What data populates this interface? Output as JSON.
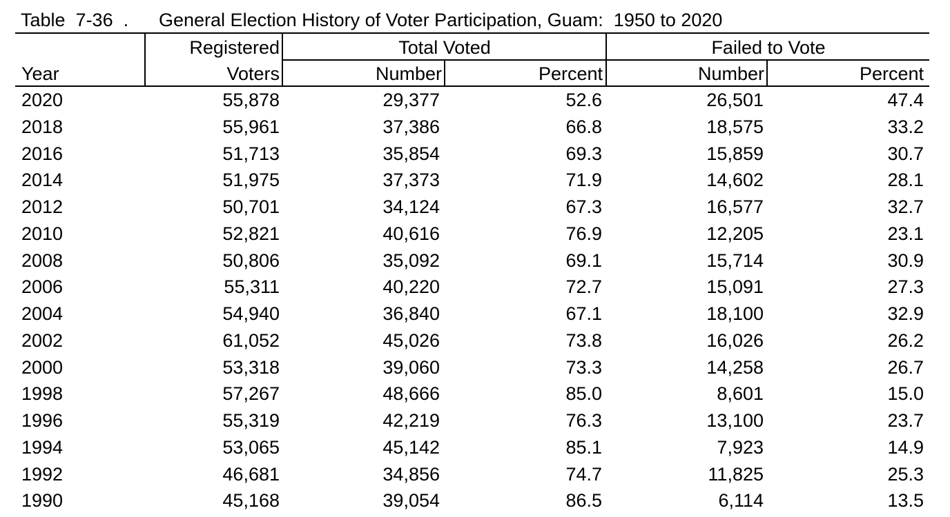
{
  "title": {
    "label": "Table  7-36  .",
    "text": "General Election History of Voter Participation, Guam:  1950 to 2020"
  },
  "headers": {
    "year": "Year",
    "registered_line1": "Registered",
    "registered_line2": "Voters",
    "total_voted": "Total Voted",
    "failed_to_vote": "Failed to Vote",
    "number": "Number",
    "percent": "Percent"
  },
  "rows": [
    {
      "year": "2020",
      "registered": "55,878",
      "voted_number": "29,377",
      "voted_percent": "52.6",
      "failed_number": "26,501",
      "failed_percent": "47.4"
    },
    {
      "year": "2018",
      "registered": "55,961",
      "voted_number": "37,386",
      "voted_percent": "66.8",
      "failed_number": "18,575",
      "failed_percent": "33.2"
    },
    {
      "year": "2016",
      "registered": "51,713",
      "voted_number": "35,854",
      "voted_percent": "69.3",
      "failed_number": "15,859",
      "failed_percent": "30.7"
    },
    {
      "year": "2014",
      "registered": "51,975",
      "voted_number": "37,373",
      "voted_percent": "71.9",
      "failed_number": "14,602",
      "failed_percent": "28.1"
    },
    {
      "year": "2012",
      "registered": "50,701",
      "voted_number": "34,124",
      "voted_percent": "67.3",
      "failed_number": "16,577",
      "failed_percent": "32.7"
    },
    {
      "year": "2010",
      "registered": "52,821",
      "voted_number": "40,616",
      "voted_percent": "76.9",
      "failed_number": "12,205",
      "failed_percent": "23.1"
    },
    {
      "year": "2008",
      "registered": "50,806",
      "voted_number": "35,092",
      "voted_percent": "69.1",
      "failed_number": "15,714",
      "failed_percent": "30.9"
    },
    {
      "year": "2006",
      "registered": "55,311",
      "voted_number": "40,220",
      "voted_percent": "72.7",
      "failed_number": "15,091",
      "failed_percent": "27.3"
    },
    {
      "year": "2004",
      "registered": "54,940",
      "voted_number": "36,840",
      "voted_percent": "67.1",
      "failed_number": "18,100",
      "failed_percent": "32.9"
    },
    {
      "year": "2002",
      "registered": "61,052",
      "voted_number": "45,026",
      "voted_percent": "73.8",
      "failed_number": "16,026",
      "failed_percent": "26.2"
    },
    {
      "year": "2000",
      "registered": "53,318",
      "voted_number": "39,060",
      "voted_percent": "73.3",
      "failed_number": "14,258",
      "failed_percent": "26.7"
    },
    {
      "year": "1998",
      "registered": "57,267",
      "voted_number": "48,666",
      "voted_percent": "85.0",
      "failed_number": "8,601",
      "failed_percent": "15.0"
    },
    {
      "year": "1996",
      "registered": "55,319",
      "voted_number": "42,219",
      "voted_percent": "76.3",
      "failed_number": "13,100",
      "failed_percent": "23.7"
    },
    {
      "year": "1994",
      "registered": "53,065",
      "voted_number": "45,142",
      "voted_percent": "85.1",
      "failed_number": "7,923",
      "failed_percent": "14.9"
    },
    {
      "year": "1992",
      "registered": "46,681",
      "voted_number": "34,856",
      "voted_percent": "74.7",
      "failed_number": "11,825",
      "failed_percent": "25.3"
    },
    {
      "year": "1990",
      "registered": "45,168",
      "voted_number": "39,054",
      "voted_percent": "86.5",
      "failed_number": "6,114",
      "failed_percent": "13.5"
    }
  ]
}
